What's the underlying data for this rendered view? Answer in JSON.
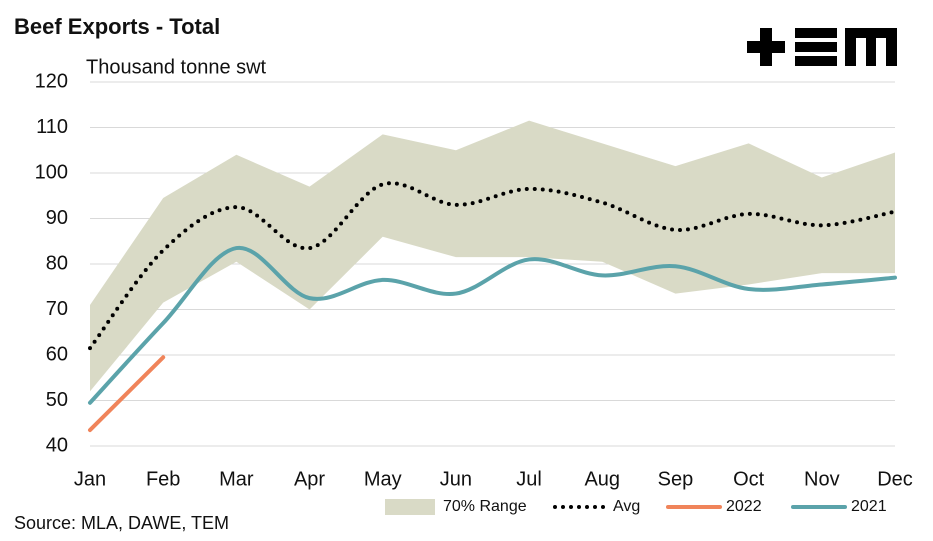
{
  "chart_data": {
    "type": "line",
    "title": "Beef Exports - Total",
    "y_label": "Thousand tonne swt",
    "source": "Source: MLA, DAWE, TEM",
    "categories": [
      "Jan",
      "Feb",
      "Mar",
      "Apr",
      "May",
      "Jun",
      "Jul",
      "Aug",
      "Sep",
      "Oct",
      "Nov",
      "Dec"
    ],
    "ylim": [
      40,
      120
    ],
    "yticks": [
      40,
      50,
      60,
      70,
      80,
      90,
      100,
      110,
      120
    ],
    "grid": true,
    "legend": "bottom",
    "series": [
      {
        "name": "70% Range",
        "color": "#d9dac6",
        "style": "band",
        "upper": [
          71,
          94.5,
          104,
          97,
          108.5,
          105,
          111.5,
          106.5,
          101.5,
          106.5,
          99,
          104.5
        ],
        "lower": [
          52,
          71.5,
          80.5,
          70,
          86,
          81.5,
          81.5,
          80.5,
          73.5,
          75.5,
          78,
          78
        ]
      },
      {
        "name": "Avg",
        "color": "#000000",
        "style": "dotted",
        "values": [
          61.5,
          83,
          92.5,
          83.5,
          97.5,
          93,
          96.5,
          93.5,
          87.5,
          91,
          88.5,
          91.5
        ]
      },
      {
        "name": "2022",
        "color": "#f0845a",
        "style": "solid",
        "values": [
          43.5,
          59.5,
          null,
          null,
          null,
          null,
          null,
          null,
          null,
          null,
          null,
          null
        ]
      },
      {
        "name": "2021",
        "color": "#5ba3aa",
        "style": "solid",
        "values": [
          49.5,
          67,
          83.5,
          72.5,
          76.5,
          73.5,
          81,
          77.5,
          79.5,
          74.5,
          75.5,
          77
        ]
      }
    ]
  }
}
